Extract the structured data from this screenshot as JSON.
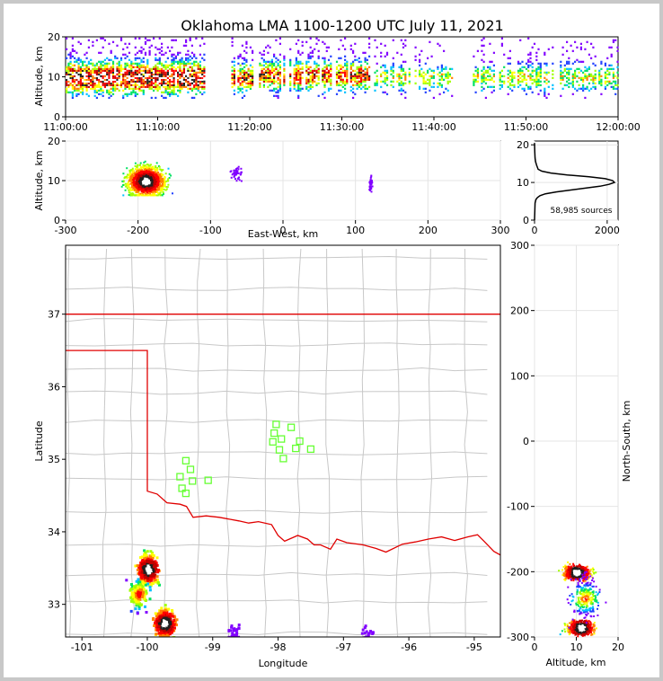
{
  "title": "Oklahoma LMA 1100-1200 UTC July 11, 2021",
  "source_count_label": "58,985 sources",
  "colors": {
    "frame_background": "#c8c8c8",
    "state_border": "#e00000",
    "county_lines": "#c8c8c8",
    "station_marker": "#66ff33",
    "density_scale": [
      "#8000ff",
      "#2040ff",
      "#00c0ff",
      "#00e060",
      "#a0ff00",
      "#ffff00",
      "#ff8000",
      "#ff0000",
      "#c00000",
      "#202020",
      "#ffffff"
    ]
  },
  "chart_data": [
    {
      "id": "time-height",
      "type": "heatmap",
      "xlabel": "",
      "ylabel": "Altitude, km",
      "x_tick_labels": [
        "11:00:00",
        "11:10:00",
        "11:20:00",
        "11:30:00",
        "11:40:00",
        "11:50:00",
        "12:00:00"
      ],
      "xlim_minutes_after_1100": [
        0,
        60
      ],
      "ylim": [
        0,
        20
      ],
      "y_ticks": [
        0,
        10,
        20
      ],
      "active_bands": [
        {
          "start_min": 0,
          "end_min": 15,
          "peak_alt_km": 10,
          "intensity": "high"
        },
        {
          "start_min": 18,
          "end_min": 20.5,
          "peak_alt_km": 10,
          "intensity": "medium"
        },
        {
          "start_min": 21,
          "end_min": 33,
          "peak_alt_km": 10.5,
          "intensity": "medium"
        },
        {
          "start_min": 33.5,
          "end_min": 42,
          "peak_alt_km": 10,
          "intensity": "low"
        },
        {
          "start_min": 44,
          "end_min": 60,
          "peak_alt_km": 10,
          "intensity": "low"
        }
      ]
    },
    {
      "id": "ew-height",
      "type": "heatmap",
      "xlabel": "East-West, km",
      "ylabel": "Altitude, km",
      "xlim": [
        -300,
        300
      ],
      "x_ticks": [
        -300,
        -200,
        -100,
        0,
        100,
        200,
        300
      ],
      "ylim": [
        0,
        20
      ],
      "y_ticks": [
        0,
        10,
        20
      ],
      "clusters": [
        {
          "x_km": -190,
          "alt_km": 10,
          "spread_x_km": 35,
          "intensity": "high"
        },
        {
          "x_km": -65,
          "alt_km": 12,
          "spread_x_km": 12,
          "intensity": "sparse"
        },
        {
          "x_km": 120,
          "alt_km": 9.5,
          "spread_x_km": 3,
          "intensity": "sparse"
        }
      ]
    },
    {
      "id": "altitude-histogram",
      "type": "line",
      "xlabel": "",
      "ylabel": "",
      "xlim": [
        0,
        2300
      ],
      "x_ticks": [
        0,
        2000
      ],
      "ylim": [
        0,
        21
      ],
      "y_ticks": [
        0,
        10,
        20
      ],
      "x": [
        0,
        15,
        40,
        80,
        150,
        300,
        600,
        1000,
        1400,
        1800,
        2050,
        2200,
        2150,
        1950,
        1500,
        900,
        450,
        200,
        100,
        60,
        30,
        15,
        8,
        3,
        0
      ],
      "y": [
        0,
        4.5,
        5.5,
        6.0,
        6.5,
        7.0,
        7.5,
        8.0,
        8.5,
        9.0,
        9.5,
        10.0,
        10.5,
        11.0,
        11.5,
        12.0,
        12.5,
        13.0,
        13.5,
        14.5,
        15.5,
        16.5,
        18.0,
        19.5,
        20.5
      ]
    },
    {
      "id": "plan-view",
      "type": "scatter",
      "xlabel": "Longitude",
      "ylabel": "Latitude",
      "xlim": [
        -101.25,
        -94.6
      ],
      "x_ticks": [
        -101,
        -100,
        -99,
        -98,
        -97,
        -96,
        -95
      ],
      "ylim": [
        32.55,
        37.95
      ],
      "y_ticks": [
        33,
        34,
        35,
        36,
        37
      ],
      "stations": [
        {
          "lon": -98.03,
          "lat": 35.48
        },
        {
          "lon": -97.8,
          "lat": 35.44
        },
        {
          "lon": -98.06,
          "lat": 35.36
        },
        {
          "lon": -97.95,
          "lat": 35.28
        },
        {
          "lon": -98.08,
          "lat": 35.24
        },
        {
          "lon": -97.67,
          "lat": 35.25
        },
        {
          "lon": -97.73,
          "lat": 35.15
        },
        {
          "lon": -97.5,
          "lat": 35.14
        },
        {
          "lon": -97.98,
          "lat": 35.13
        },
        {
          "lon": -97.92,
          "lat": 35.01
        },
        {
          "lon": -99.41,
          "lat": 34.98
        },
        {
          "lon": -99.34,
          "lat": 34.86
        },
        {
          "lon": -99.5,
          "lat": 34.76
        },
        {
          "lon": -99.31,
          "lat": 34.7
        },
        {
          "lon": -99.07,
          "lat": 34.71
        },
        {
          "lon": -99.47,
          "lat": 34.6
        },
        {
          "lon": -99.41,
          "lat": 34.53
        }
      ],
      "clusters": [
        {
          "lon": -100.0,
          "lat": 33.5,
          "intensity": "high"
        },
        {
          "lon": -99.75,
          "lat": 32.75,
          "intensity": "high"
        },
        {
          "lon": -100.15,
          "lat": 33.15,
          "intensity": "medium"
        },
        {
          "lon": -98.7,
          "lat": 32.62,
          "intensity": "sparse"
        },
        {
          "lon": -96.65,
          "lat": 32.58,
          "intensity": "sparse"
        }
      ]
    },
    {
      "id": "ns-height",
      "type": "heatmap",
      "xlabel": "Altitude, km",
      "ylabel": "North-South, km",
      "xlim": [
        0,
        20
      ],
      "x_ticks": [
        0,
        10,
        20
      ],
      "ylim": [
        -300,
        300
      ],
      "y_ticks": [
        -300,
        -200,
        -100,
        0,
        100,
        200,
        300
      ],
      "clusters": [
        {
          "alt_km": 10,
          "y_km": -200,
          "intensity": "high"
        },
        {
          "alt_km": 11,
          "y_km": -285,
          "intensity": "high"
        },
        {
          "alt_km": 12,
          "y_km": -240,
          "intensity": "medium"
        }
      ]
    }
  ]
}
